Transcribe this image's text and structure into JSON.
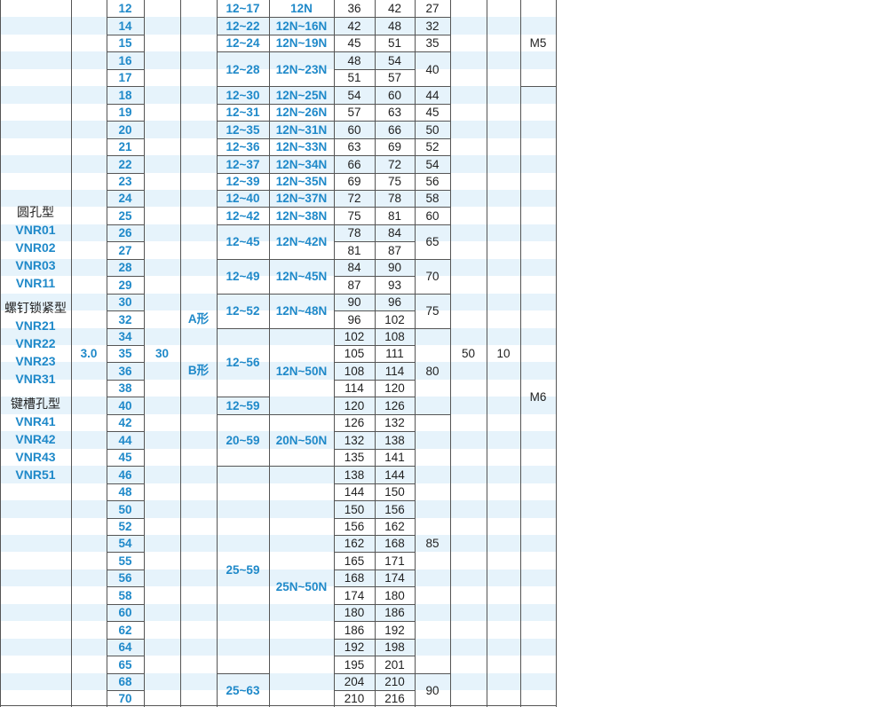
{
  "series": {
    "groups": [
      {
        "name": "圆孔型",
        "models": [
          "VNR01",
          "VNR02",
          "VNR03",
          "VNR11"
        ]
      },
      {
        "name": "螺钉锁紧型",
        "models": [
          "VNR21",
          "VNR22",
          "VNR23",
          "VNR31"
        ]
      },
      {
        "name": "键槽孔型",
        "models": [
          "VNR41",
          "VNR42",
          "VNR43",
          "VNR51"
        ]
      }
    ]
  },
  "common": {
    "col2": "3.0",
    "col4": "30",
    "shape_a": "A形",
    "shape_b": "B形",
    "col10": "50",
    "col11": "10"
  },
  "rows": [
    {
      "d": "12",
      "c1": "36",
      "c2": "42"
    },
    {
      "d": "14",
      "c1": "42",
      "c2": "48"
    },
    {
      "d": "15",
      "c1": "45",
      "c2": "51"
    },
    {
      "d": "16",
      "c1": "48",
      "c2": "54"
    },
    {
      "d": "17",
      "c1": "51",
      "c2": "57"
    },
    {
      "d": "18",
      "c1": "54",
      "c2": "60"
    },
    {
      "d": "19",
      "c1": "57",
      "c2": "63"
    },
    {
      "d": "20",
      "c1": "60",
      "c2": "66"
    },
    {
      "d": "21",
      "c1": "63",
      "c2": "69"
    },
    {
      "d": "22",
      "c1": "66",
      "c2": "72"
    },
    {
      "d": "23",
      "c1": "69",
      "c2": "75"
    },
    {
      "d": "24",
      "c1": "72",
      "c2": "78"
    },
    {
      "d": "25",
      "c1": "75",
      "c2": "81"
    },
    {
      "d": "26",
      "c1": "78",
      "c2": "84"
    },
    {
      "d": "27",
      "c1": "81",
      "c2": "87"
    },
    {
      "d": "28",
      "c1": "84",
      "c2": "90"
    },
    {
      "d": "29",
      "c1": "87",
      "c2": "93"
    },
    {
      "d": "30",
      "c1": "90",
      "c2": "96"
    },
    {
      "d": "32",
      "c1": "96",
      "c2": "102"
    },
    {
      "d": "34",
      "c1": "102",
      "c2": "108"
    },
    {
      "d": "35",
      "c1": "105",
      "c2": "111"
    },
    {
      "d": "36",
      "c1": "108",
      "c2": "114"
    },
    {
      "d": "38",
      "c1": "114",
      "c2": "120"
    },
    {
      "d": "40",
      "c1": "120",
      "c2": "126"
    },
    {
      "d": "42",
      "c1": "126",
      "c2": "132"
    },
    {
      "d": "44",
      "c1": "132",
      "c2": "138"
    },
    {
      "d": "45",
      "c1": "135",
      "c2": "141"
    },
    {
      "d": "46",
      "c1": "138",
      "c2": "144"
    },
    {
      "d": "48",
      "c1": "144",
      "c2": "150"
    },
    {
      "d": "50",
      "c1": "150",
      "c2": "156"
    },
    {
      "d": "52",
      "c1": "156",
      "c2": "162"
    },
    {
      "d": "54",
      "c1": "162",
      "c2": "168"
    },
    {
      "d": "55",
      "c1": "165",
      "c2": "171"
    },
    {
      "d": "56",
      "c1": "168",
      "c2": "174"
    },
    {
      "d": "58",
      "c1": "174",
      "c2": "180"
    },
    {
      "d": "60",
      "c1": "180",
      "c2": "186"
    },
    {
      "d": "62",
      "c1": "186",
      "c2": "192"
    },
    {
      "d": "64",
      "c1": "192",
      "c2": "198"
    },
    {
      "d": "65",
      "c1": "195",
      "c2": "201"
    },
    {
      "d": "68",
      "c1": "204",
      "c2": "210"
    },
    {
      "d": "70",
      "c1": "210",
      "c2": "216"
    }
  ],
  "range_a": [
    {
      "start": 0,
      "span": 1,
      "text": "12~17"
    },
    {
      "start": 1,
      "span": 1,
      "text": "12~22"
    },
    {
      "start": 2,
      "span": 1,
      "text": "12~24"
    },
    {
      "start": 3,
      "span": 2,
      "text": "12~28"
    },
    {
      "start": 5,
      "span": 1,
      "text": "12~30"
    },
    {
      "start": 6,
      "span": 1,
      "text": "12~31"
    },
    {
      "start": 7,
      "span": 1,
      "text": "12~35"
    },
    {
      "start": 8,
      "span": 1,
      "text": "12~36"
    },
    {
      "start": 9,
      "span": 1,
      "text": "12~37"
    },
    {
      "start": 10,
      "span": 1,
      "text": "12~39"
    },
    {
      "start": 11,
      "span": 1,
      "text": "12~40"
    },
    {
      "start": 12,
      "span": 1,
      "text": "12~42"
    },
    {
      "start": 13,
      "span": 2,
      "text": "12~45"
    },
    {
      "start": 15,
      "span": 2,
      "text": "12~49"
    },
    {
      "start": 17,
      "span": 2,
      "text": "12~52"
    },
    {
      "start": 19,
      "span": 4,
      "text": "12~56"
    },
    {
      "start": 23,
      "span": 1,
      "text": "12~59"
    },
    {
      "start": 24,
      "span": 3,
      "text": "20~59"
    },
    {
      "start": 27,
      "span": 12,
      "text": "25~59"
    },
    {
      "start": 39,
      "span": 2,
      "text": "25~63"
    }
  ],
  "range_b": [
    {
      "start": 0,
      "span": 1,
      "text": "12N"
    },
    {
      "start": 1,
      "span": 1,
      "text": "12N~16N"
    },
    {
      "start": 2,
      "span": 1,
      "text": "12N~19N"
    },
    {
      "start": 3,
      "span": 2,
      "text": "12N~23N"
    },
    {
      "start": 5,
      "span": 1,
      "text": "12N~25N"
    },
    {
      "start": 6,
      "span": 1,
      "text": "12N~26N"
    },
    {
      "start": 7,
      "span": 1,
      "text": "12N~31N"
    },
    {
      "start": 8,
      "span": 1,
      "text": "12N~33N"
    },
    {
      "start": 9,
      "span": 1,
      "text": "12N~34N"
    },
    {
      "start": 10,
      "span": 1,
      "text": "12N~35N"
    },
    {
      "start": 11,
      "span": 1,
      "text": "12N~37N"
    },
    {
      "start": 12,
      "span": 1,
      "text": "12N~38N"
    },
    {
      "start": 13,
      "span": 2,
      "text": "12N~42N"
    },
    {
      "start": 15,
      "span": 2,
      "text": "12N~45N"
    },
    {
      "start": 17,
      "span": 2,
      "text": "12N~48N"
    },
    {
      "start": 19,
      "span": 5,
      "text": "12N~50N"
    },
    {
      "start": 24,
      "span": 3,
      "text": "20N~50N"
    },
    {
      "start": 27,
      "span": 14,
      "text": "25N~50N"
    }
  ],
  "col9": [
    {
      "start": 0,
      "span": 1,
      "text": "27"
    },
    {
      "start": 1,
      "span": 1,
      "text": "32"
    },
    {
      "start": 2,
      "span": 1,
      "text": "35"
    },
    {
      "start": 3,
      "span": 2,
      "text": "40"
    },
    {
      "start": 5,
      "span": 1,
      "text": "44"
    },
    {
      "start": 6,
      "span": 1,
      "text": "45"
    },
    {
      "start": 7,
      "span": 1,
      "text": "50"
    },
    {
      "start": 8,
      "span": 1,
      "text": "52"
    },
    {
      "start": 9,
      "span": 1,
      "text": "54"
    },
    {
      "start": 10,
      "span": 1,
      "text": "56"
    },
    {
      "start": 11,
      "span": 1,
      "text": "58"
    },
    {
      "start": 12,
      "span": 1,
      "text": "60"
    },
    {
      "start": 13,
      "span": 2,
      "text": "65"
    },
    {
      "start": 15,
      "span": 2,
      "text": "70"
    },
    {
      "start": 17,
      "span": 2,
      "text": "75"
    },
    {
      "start": 19,
      "span": 5,
      "text": "80"
    },
    {
      "start": 24,
      "span": 15,
      "text": "85"
    },
    {
      "start": 39,
      "span": 2,
      "text": "90"
    }
  ],
  "col12": [
    {
      "start": 0,
      "span": 5,
      "text": "M5"
    },
    {
      "start": 5,
      "span": 36,
      "text": "M6"
    }
  ]
}
